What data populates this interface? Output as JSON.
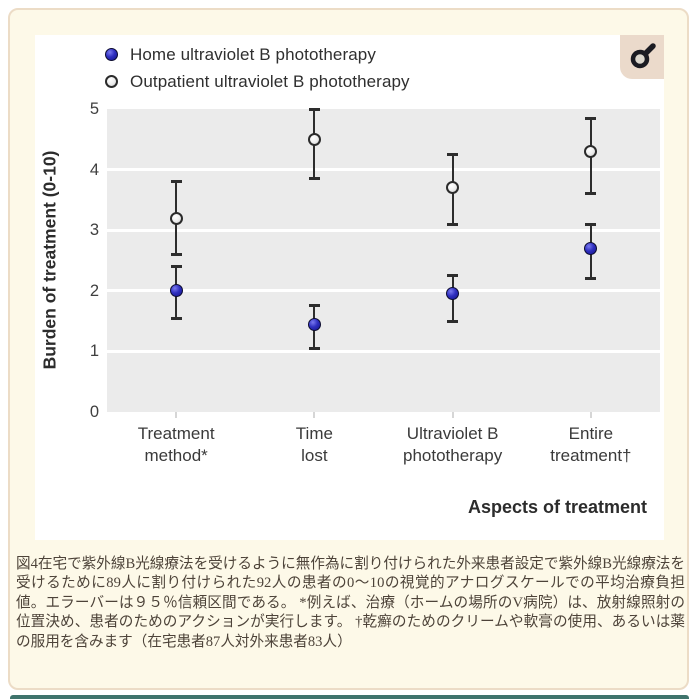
{
  "figure": {
    "legend": [
      {
        "label": "Home ultraviolet B phototherapy",
        "series": "home"
      },
      {
        "label": "Outpatient ultraviolet B phototherapy",
        "series": "outpatient"
      }
    ],
    "y_axis_title": "Burden of treatment (0-10)",
    "x_axis_title": "Aspects of treatment",
    "corner_icon": "male-symbol-icon"
  },
  "chart_data": {
    "type": "scatter",
    "title": "",
    "categories": [
      [
        "Treatment",
        "method*"
      ],
      [
        "Time",
        "lost"
      ],
      [
        "Ultraviolet B",
        "phototherapy"
      ],
      [
        "Entire",
        "treatment†"
      ]
    ],
    "series": [
      {
        "name": "Home ultraviolet B phototherapy",
        "key": "home",
        "marker": "filled-navy-circle",
        "color": "#2323ae",
        "values": [
          2.0,
          1.45,
          1.95,
          2.7
        ],
        "ci_low": [
          1.55,
          1.05,
          1.5,
          2.2
        ],
        "ci_high": [
          2.4,
          1.75,
          2.25,
          3.1
        ]
      },
      {
        "name": "Outpatient ultraviolet B phototherapy",
        "key": "outpatient",
        "marker": "open-circle",
        "color": "#f4f4f4",
        "values": [
          3.2,
          4.5,
          3.7,
          4.3
        ],
        "ci_low": [
          2.6,
          3.85,
          3.1,
          3.6
        ],
        "ci_high": [
          3.8,
          5.0,
          4.25,
          4.85
        ]
      }
    ],
    "xlabel": "Aspects of treatment",
    "ylabel": "Burden of treatment (0-10)",
    "ylim": [
      0,
      5
    ],
    "yticks": [
      0,
      1,
      2,
      3,
      4,
      5
    ],
    "error_bars": "95% confidence interval",
    "grid": "horizontal white lines on gray panel",
    "legend_position": "top-left"
  },
  "caption": {
    "text": "図4在宅で紫外線B光線療法を受けるように無作為に割り付けられた外来患者設定で紫外線B光線療法を受けるために89人に割り付けられた92人の患者の0～10の視覚的アナログスケールでの平均治療負担値。エラーバーは９５％信頼区間である。 *例えば、治療（ホームの場所のV病院）は、放射線照射の位置決め、患者のためのアクションが実行します。 †乾癬のためのクリームや軟膏の使用、あるいは薬の服用を含みます（在宅患者87人対外来患者83人）"
  },
  "colors": {
    "page_bg": "#ffffff",
    "card_bg": "#fdf9e8",
    "card_border": "#ecdcc6",
    "panel_bg": "#ffffff",
    "plot_bg": "#ebebeb",
    "gridline": "#ffffff",
    "axis_text": "#3a3a3a",
    "home_marker": "#2323ae",
    "outpatient_marker": "#f4f4f4",
    "error_bar": "#2d2d2d",
    "icon_bg": "#ebdacb",
    "icon_fg": "#1b1b22",
    "caption_text": "#4d4339",
    "bottom_bar": "#3f746c"
  }
}
